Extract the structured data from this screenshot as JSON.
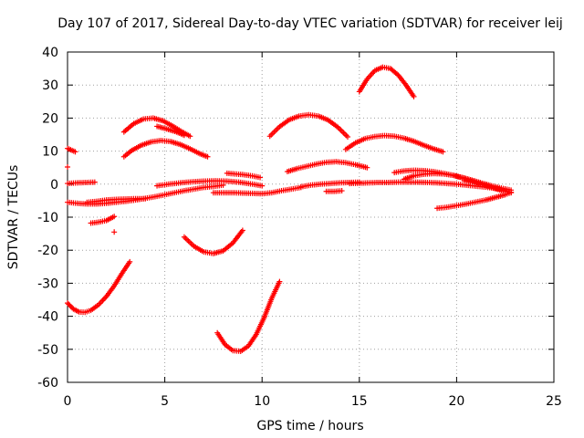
{
  "chart_data": {
    "type": "scatter",
    "title": "Day 107 of 2017, Sidereal Day-to-day VTEC variation (SDTVAR) for receiver leij",
    "xlabel": "GPS time / hours",
    "ylabel": "SDTVAR / TECUs",
    "xlim": [
      0,
      25
    ],
    "ylim": [
      -60,
      40
    ],
    "xticks": [
      0,
      5,
      10,
      15,
      20,
      25
    ],
    "yticks": [
      -60,
      -50,
      -40,
      -30,
      -20,
      -10,
      0,
      10,
      20,
      30,
      40
    ],
    "grid": true,
    "marker": "plus",
    "color": "#ff0000",
    "series": [
      {
        "x": [
          0.0,
          0.3,
          0.6,
          0.9,
          1.2,
          1.6,
          2.0,
          2.4,
          2.8,
          3.2
        ],
        "y": [
          -36,
          -37.8,
          -38.7,
          -38.8,
          -38.2,
          -36.5,
          -34,
          -30.8,
          -27,
          -23.5
        ]
      },
      {
        "x": [
          0.0,
          0.5,
          1.0,
          1.5,
          2.0,
          2.5,
          3.0,
          3.5,
          4.0,
          4.5,
          5.0,
          5.5,
          6.0,
          6.5,
          7.0,
          7.5,
          8.0
        ],
        "y": [
          -5.5,
          -5.8,
          -6.0,
          -6.0,
          -5.8,
          -5.5,
          -5.2,
          -4.8,
          -4.3,
          -3.8,
          -3.2,
          -2.6,
          -2.0,
          -1.5,
          -1.0,
          -0.7,
          -0.3
        ]
      },
      {
        "x": [
          1.0,
          1.5,
          2.0,
          2.5,
          3.0,
          3.5,
          4.0
        ],
        "y": [
          -5.5,
          -5.2,
          -4.8,
          -4.6,
          -4.5,
          -4.4,
          -4.4
        ]
      },
      {
        "x": [
          0.0,
          0.5,
          1.0,
          1.4
        ],
        "y": [
          0.2,
          0.4,
          0.5,
          0.6
        ]
      },
      {
        "x": [
          0.0,
          0.4
        ],
        "y": [
          10.8,
          9.8
        ]
      },
      {
        "x": [
          0.0
        ],
        "y": [
          5.2
        ]
      },
      {
        "x": [
          1.2,
          1.6,
          2.0,
          2.4
        ],
        "y": [
          -11.8,
          -11.5,
          -11.0,
          -9.8
        ]
      },
      {
        "x": [
          2.4
        ],
        "y": [
          -14.5
        ]
      },
      {
        "x": [
          2.9,
          3.3,
          3.8,
          4.3,
          4.8,
          5.3,
          5.8,
          6.3,
          6.8,
          7.2
        ],
        "y": [
          8.3,
          10.2,
          11.8,
          12.8,
          13.2,
          12.9,
          12.0,
          10.7,
          9.2,
          8.3
        ]
      },
      {
        "x": [
          2.9,
          3.4,
          3.9,
          4.4,
          4.9,
          5.4,
          5.9,
          6.3
        ],
        "y": [
          15.8,
          18.3,
          19.7,
          20.0,
          19.2,
          17.6,
          15.8,
          14.5
        ]
      },
      {
        "x": [
          4.6,
          5.1,
          5.6,
          6.0
        ],
        "y": [
          17.5,
          16.7,
          15.8,
          14.8
        ]
      },
      {
        "x": [
          4.6,
          5.2,
          5.8,
          6.4,
          7.0,
          7.6,
          8.2,
          8.8,
          9.4,
          10.0
        ],
        "y": [
          -0.5,
          0.0,
          0.4,
          0.7,
          0.9,
          1.0,
          0.9,
          0.6,
          0.1,
          -0.5
        ]
      },
      {
        "x": [
          6.0,
          6.5,
          7.0,
          7.5,
          8.0,
          8.5,
          9.0
        ],
        "y": [
          -16.0,
          -18.8,
          -20.5,
          -21.0,
          -20.2,
          -17.8,
          -14.0
        ]
      },
      {
        "x": [
          7.5,
          8.0,
          8.5,
          9.0,
          9.5,
          10.0,
          10.5,
          11.0,
          11.5,
          12.0
        ],
        "y": [
          -2.6,
          -2.6,
          -2.6,
          -2.7,
          -2.8,
          -2.9,
          -2.6,
          -2.0,
          -1.5,
          -1.0
        ]
      },
      {
        "x": [
          8.2,
          8.6,
          9.0,
          9.5,
          9.9
        ],
        "y": [
          3.3,
          3.1,
          2.9,
          2.5,
          2.0
        ]
      },
      {
        "x": [
          7.7,
          8.1,
          8.5,
          8.9,
          9.3,
          9.7,
          10.1,
          10.5,
          10.9
        ],
        "y": [
          -45.0,
          -48.6,
          -50.4,
          -50.6,
          -49.0,
          -45.5,
          -40.5,
          -34.5,
          -29.5
        ]
      },
      {
        "x": [
          10.4,
          10.9,
          11.4,
          11.9,
          12.4,
          12.9,
          13.4,
          13.9,
          14.4
        ],
        "y": [
          14.5,
          17.4,
          19.5,
          20.6,
          21.0,
          20.6,
          19.4,
          17.2,
          14.3
        ]
      },
      {
        "x": [
          11.3,
          11.8,
          12.3,
          12.8,
          13.3,
          13.8,
          14.3,
          14.8,
          15.4
        ],
        "y": [
          3.8,
          4.7,
          5.4,
          6.1,
          6.6,
          6.8,
          6.5,
          5.9,
          5.0
        ]
      },
      {
        "x": [
          12.0,
          12.5,
          13.0,
          13.5,
          14.0,
          14.5,
          15.0
        ],
        "y": [
          -0.8,
          -0.3,
          0.0,
          0.2,
          0.4,
          0.5,
          0.6
        ]
      },
      {
        "x": [
          13.3,
          13.7,
          14.1
        ],
        "y": [
          -2.2,
          -2.2,
          -2.0
        ]
      },
      {
        "x": [
          14.5,
          15.0,
          15.5,
          16.0,
          16.5,
          17.0,
          17.5,
          18.0,
          18.5,
          19.0,
          19.5,
          20.0,
          20.5,
          21.0,
          21.5,
          22.0,
          22.5
        ],
        "y": [
          0.2,
          0.3,
          0.4,
          0.5,
          0.5,
          0.6,
          0.6,
          0.6,
          0.5,
          0.4,
          0.2,
          0.0,
          -0.3,
          -0.6,
          -0.9,
          -1.3,
          -1.7
        ]
      },
      {
        "x": [
          14.3,
          14.8,
          15.3,
          15.8,
          16.3,
          16.8,
          17.3,
          17.8,
          18.3,
          18.8,
          19.3
        ],
        "y": [
          10.5,
          12.5,
          13.8,
          14.4,
          14.7,
          14.5,
          13.9,
          13.0,
          11.8,
          10.7,
          9.8
        ]
      },
      {
        "x": [
          15.0,
          15.4,
          15.8,
          16.2,
          16.6,
          17.0,
          17.4,
          17.8
        ],
        "y": [
          28.0,
          31.8,
          34.4,
          35.4,
          35.0,
          33.0,
          30.0,
          26.5
        ]
      },
      {
        "x": [
          16.8,
          17.3,
          17.8,
          18.3,
          18.8,
          19.3,
          19.8,
          20.3,
          20.8,
          21.3,
          21.8,
          22.3,
          22.8
        ],
        "y": [
          3.5,
          4.0,
          4.2,
          4.1,
          3.8,
          3.3,
          2.7,
          1.9,
          1.0,
          0.0,
          -1.0,
          -1.9,
          -2.6
        ]
      },
      {
        "x": [
          17.3,
          17.8,
          18.3,
          18.8,
          19.3,
          19.8,
          20.3,
          20.8,
          21.3,
          21.8,
          22.3,
          22.8
        ],
        "y": [
          1.5,
          2.5,
          3.0,
          3.2,
          3.1,
          2.7,
          2.0,
          1.2,
          0.3,
          -0.5,
          -1.2,
          -1.8
        ]
      },
      {
        "x": [
          19.0,
          19.5,
          20.0,
          20.5,
          21.0,
          21.5,
          22.0,
          22.5,
          22.8
        ],
        "y": [
          -7.3,
          -7.0,
          -6.5,
          -6.0,
          -5.4,
          -4.8,
          -4.0,
          -3.2,
          -2.5
        ]
      },
      {
        "x": [
          20.4,
          20.9,
          21.4,
          21.9,
          22.4,
          22.8
        ],
        "y": [
          1.0,
          0.4,
          -0.3,
          -1.0,
          -1.8,
          -2.5
        ]
      }
    ]
  }
}
